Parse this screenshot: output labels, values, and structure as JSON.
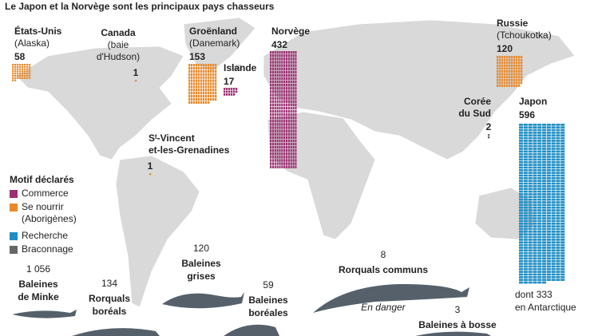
{
  "header": {
    "title": "Le Japon et la Norvège sont les principaux pays chasseurs"
  },
  "legend": {
    "title": "Motif déclarés",
    "items": [
      {
        "label": [
          "Commerce"
        ],
        "color": "#9c2f72"
      },
      {
        "label": [
          "Se nourrir",
          "(Aborigènes)"
        ],
        "color": "#e8892b"
      },
      {
        "label": [
          "Recherche"
        ],
        "color": "#1f8ec4"
      },
      {
        "label": [
          "Braconnage"
        ],
        "color": "#666666"
      }
    ]
  },
  "countries": [
    {
      "name": [
        "États-Unis"
      ],
      "detail": [
        "(Alaska)"
      ],
      "count": 58,
      "motive": 1
    },
    {
      "name": [
        "Canada"
      ],
      "detail": [
        "(baie",
        "d'Hudson)"
      ],
      "count": 1,
      "motive": 1
    },
    {
      "name": [
        "Groënland"
      ],
      "detail": [
        "(Danemark)"
      ],
      "count": 153,
      "motive": 1
    },
    {
      "name": [
        "Islande"
      ],
      "detail": [],
      "count": 17,
      "motive": 0
    },
    {
      "name": [
        "Norvège"
      ],
      "detail": [],
      "count": 432,
      "motive": 0
    },
    {
      "name": [
        "Russie"
      ],
      "detail": [
        "(Tchoukotka)"
      ],
      "count": 120,
      "motive": 1
    },
    {
      "name": [
        "Corée",
        "du Sud"
      ],
      "detail": [],
      "count": 2,
      "motive": 3
    },
    {
      "name": [
        "Japon"
      ],
      "detail": [],
      "count": 596,
      "motive": 2,
      "note": [
        "dont 333",
        "en Antarctique"
      ]
    },
    {
      "name": [
        "Sᵗ-Vincent",
        "et-les-Grenadines"
      ],
      "detail": [],
      "count": 1,
      "motive": 1
    }
  ],
  "species": [
    {
      "count": "1 056",
      "name": [
        "Baleines",
        "de Minke"
      ]
    },
    {
      "count": "134",
      "name": [
        "Rorquals",
        "boréals"
      ]
    },
    {
      "count": "120",
      "name": [
        "Baleines",
        "grises"
      ]
    },
    {
      "count": "59",
      "name": [
        "Baleines",
        "boréales"
      ]
    },
    {
      "count": "8",
      "name": [
        "Rorquals communs"
      ],
      "status": "En danger"
    },
    {
      "count": "3",
      "name": [
        "Baleines à bosse"
      ]
    }
  ]
}
